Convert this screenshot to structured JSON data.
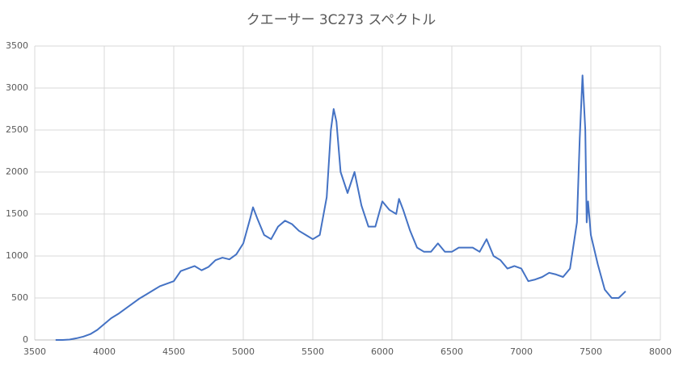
{
  "chart_data": {
    "type": "line",
    "title": "クエーサー 3C273 スペクトル",
    "x": [
      3650,
      3700,
      3750,
      3800,
      3850,
      3900,
      3950,
      4000,
      4050,
      4100,
      4150,
      4200,
      4250,
      4300,
      4350,
      4400,
      4450,
      4500,
      4550,
      4600,
      4650,
      4700,
      4750,
      4800,
      4850,
      4900,
      4950,
      5000,
      5050,
      5070,
      5100,
      5150,
      5200,
      5250,
      5300,
      5350,
      5400,
      5450,
      5500,
      5550,
      5600,
      5630,
      5650,
      5670,
      5700,
      5750,
      5800,
      5850,
      5900,
      5950,
      6000,
      6050,
      6100,
      6120,
      6150,
      6200,
      6250,
      6300,
      6350,
      6400,
      6450,
      6500,
      6550,
      6600,
      6650,
      6700,
      6750,
      6800,
      6850,
      6900,
      6950,
      7000,
      7050,
      7100,
      7150,
      7200,
      7250,
      7300,
      7350,
      7400,
      7420,
      7440,
      7460,
      7470,
      7480,
      7500,
      7550,
      7600,
      7650,
      7700,
      7750
    ],
    "series": [
      {
        "name": "3C273",
        "color": "#4472c4",
        "values": [
          0,
          0,
          5,
          20,
          40,
          70,
          120,
          190,
          260,
          310,
          370,
          430,
          490,
          540,
          590,
          640,
          670,
          700,
          820,
          850,
          880,
          830,
          870,
          950,
          980,
          960,
          1020,
          1150,
          1450,
          1580,
          1450,
          1250,
          1200,
          1350,
          1420,
          1380,
          1300,
          1250,
          1200,
          1250,
          1700,
          2500,
          2750,
          2600,
          2000,
          1750,
          2000,
          1600,
          1350,
          1350,
          1650,
          1550,
          1500,
          1680,
          1550,
          1300,
          1100,
          1050,
          1050,
          1150,
          1050,
          1050,
          1100,
          1100,
          1100,
          1050,
          1200,
          1000,
          950,
          850,
          880,
          850,
          700,
          720,
          750,
          800,
          780,
          750,
          850,
          1400,
          2400,
          3150,
          2500,
          1400,
          1650,
          1250,
          900,
          600,
          500,
          500,
          580
        ]
      }
    ],
    "xlim": [
      3500,
      8000
    ],
    "xticks": [
      3500,
      4000,
      4500,
      5000,
      5500,
      6000,
      6500,
      7000,
      7500,
      8000
    ],
    "ylim": [
      0,
      3500
    ],
    "yticks": [
      0,
      500,
      1000,
      1500,
      2000,
      2500,
      3000,
      3500
    ],
    "grid": true
  }
}
